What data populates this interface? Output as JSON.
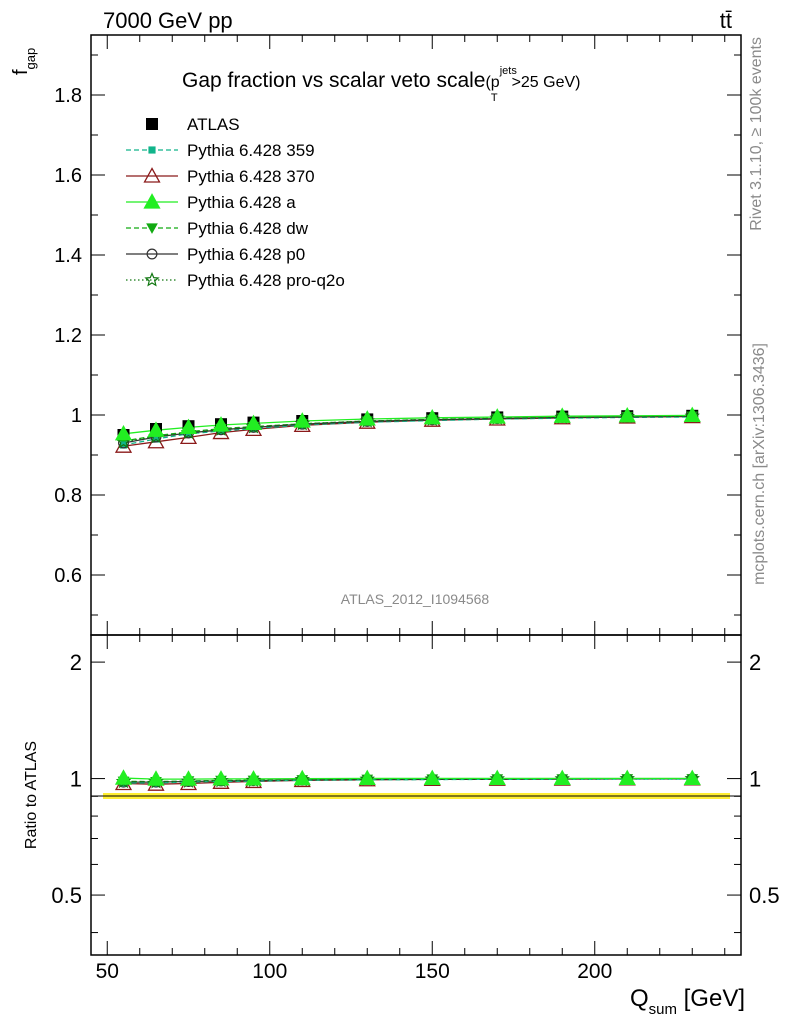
{
  "header": {
    "left": "7000 GeV pp",
    "right": "tt̄"
  },
  "side": {
    "rivet": "Rivet 3.1.10, ≥ 100k events",
    "mcplots": "mcplots.cern.ch [arXiv:1306.3436]"
  },
  "chart_data": [
    {
      "type": "line",
      "title": "Gap fraction vs scalar veto scale",
      "title_extra": {
        "open": "(p",
        "sup": "jets",
        "sub": "T",
        "rest": ">25 GeV)"
      },
      "ylabel": {
        "main": "f",
        "sub": "gap"
      },
      "watermark": "ATLAS_2012_I1094568",
      "xlim": [
        45,
        245
      ],
      "ylim": [
        0.45,
        1.95
      ],
      "yticks": [
        0.6,
        0.8,
        1,
        1.2,
        1.4,
        1.6,
        1.8
      ],
      "x": [
        55,
        65,
        75,
        85,
        95,
        110,
        130,
        150,
        170,
        190,
        210,
        230
      ],
      "series": [
        {
          "name": "ATLAS",
          "color": "#000000",
          "marker": "square",
          "line": "none",
          "values": [
            0.95,
            0.965,
            0.972,
            0.977,
            0.981,
            0.985,
            0.989,
            0.992,
            0.994,
            0.996,
            0.997,
            0.998
          ]
        },
        {
          "name": "Pythia 6.428 359",
          "color": "#11b48a",
          "marker": "small-square",
          "line": "dashed",
          "values": [
            0.925,
            0.94,
            0.953,
            0.96,
            0.966,
            0.975,
            0.982,
            0.986,
            0.99,
            0.992,
            0.994,
            0.995
          ]
        },
        {
          "name": "Pythia 6.428 370",
          "color": "#8b1a1a",
          "marker": "open-triangle",
          "line": "solid",
          "values": [
            0.922,
            0.933,
            0.944,
            0.956,
            0.964,
            0.974,
            0.982,
            0.987,
            0.99,
            0.993,
            0.995,
            0.996
          ]
        },
        {
          "name": "Pythia 6.428 a",
          "color": "#22ee22",
          "marker": "triangle",
          "line": "solid",
          "values": [
            0.953,
            0.962,
            0.969,
            0.975,
            0.979,
            0.985,
            0.99,
            0.993,
            0.995,
            0.997,
            0.998,
            0.999
          ]
        },
        {
          "name": "Pythia 6.428 dw",
          "color": "#11aa11",
          "marker": "triangle-down",
          "line": "dashed",
          "values": [
            0.935,
            0.948,
            0.958,
            0.966,
            0.971,
            0.978,
            0.985,
            0.989,
            0.992,
            0.994,
            0.996,
            0.997
          ]
        },
        {
          "name": "Pythia 6.428 p0",
          "color": "#333333",
          "marker": "open-circle",
          "line": "solid",
          "values": [
            0.93,
            0.945,
            0.955,
            0.963,
            0.969,
            0.977,
            0.984,
            0.988,
            0.991,
            0.994,
            0.995,
            0.997
          ]
        },
        {
          "name": "Pythia 6.428 pro-q2o",
          "color": "#117711",
          "marker": "star",
          "line": "dotted",
          "values": [
            0.933,
            0.946,
            0.956,
            0.964,
            0.97,
            0.978,
            0.985,
            0.989,
            0.992,
            0.994,
            0.996,
            0.997
          ]
        }
      ]
    },
    {
      "type": "line",
      "ylabel": "Ratio to ATLAS",
      "xlabel": {
        "main": "Q",
        "sub": "sum",
        "unit": " [GeV]"
      },
      "xlim": [
        45,
        245
      ],
      "ylim": [
        0.35,
        2.35
      ],
      "ylog": true,
      "yticks": [
        0.5,
        1,
        2
      ],
      "xticks": [
        50,
        100,
        150,
        200
      ],
      "x": [
        55,
        65,
        75,
        85,
        95,
        110,
        130,
        150,
        170,
        190,
        210,
        230
      ],
      "series": [
        {
          "name": "Pythia 6.428 359",
          "color": "#11b48a",
          "marker": "small-square",
          "line": "dashed",
          "values": [
            0.974,
            0.974,
            0.98,
            0.983,
            0.985,
            0.99,
            0.993,
            0.994,
            0.996,
            0.996,
            0.997,
            0.997
          ]
        },
        {
          "name": "Pythia 6.428 370",
          "color": "#8b1a1a",
          "marker": "open-triangle",
          "line": "solid",
          "values": [
            0.971,
            0.967,
            0.971,
            0.978,
            0.983,
            0.989,
            0.993,
            0.995,
            0.996,
            0.997,
            0.998,
            0.998
          ]
        },
        {
          "name": "Pythia 6.428 a",
          "color": "#22ee22",
          "marker": "triangle",
          "line": "solid",
          "values": [
            1.003,
            0.997,
            0.997,
            0.998,
            0.998,
            1.0,
            1.001,
            1.001,
            1.001,
            1.001,
            1.001,
            1.001
          ]
        },
        {
          "name": "Pythia 6.428 dw",
          "color": "#11aa11",
          "marker": "triangle-down",
          "line": "dashed",
          "values": [
            0.984,
            0.982,
            0.986,
            0.989,
            0.99,
            0.993,
            0.996,
            0.997,
            0.998,
            0.998,
            0.999,
            0.999
          ]
        },
        {
          "name": "Pythia 6.428 p0",
          "color": "#333333",
          "marker": "open-circle",
          "line": "solid",
          "values": [
            0.979,
            0.979,
            0.983,
            0.986,
            0.988,
            0.992,
            0.995,
            0.996,
            0.997,
            0.998,
            0.998,
            0.999
          ]
        },
        {
          "name": "Pythia 6.428 pro-q2o",
          "color": "#117711",
          "marker": "star",
          "line": "dotted",
          "values": [
            0.982,
            0.98,
            0.984,
            0.987,
            0.989,
            0.993,
            0.996,
            0.997,
            0.998,
            0.998,
            0.999,
            0.999
          ]
        }
      ]
    }
  ]
}
